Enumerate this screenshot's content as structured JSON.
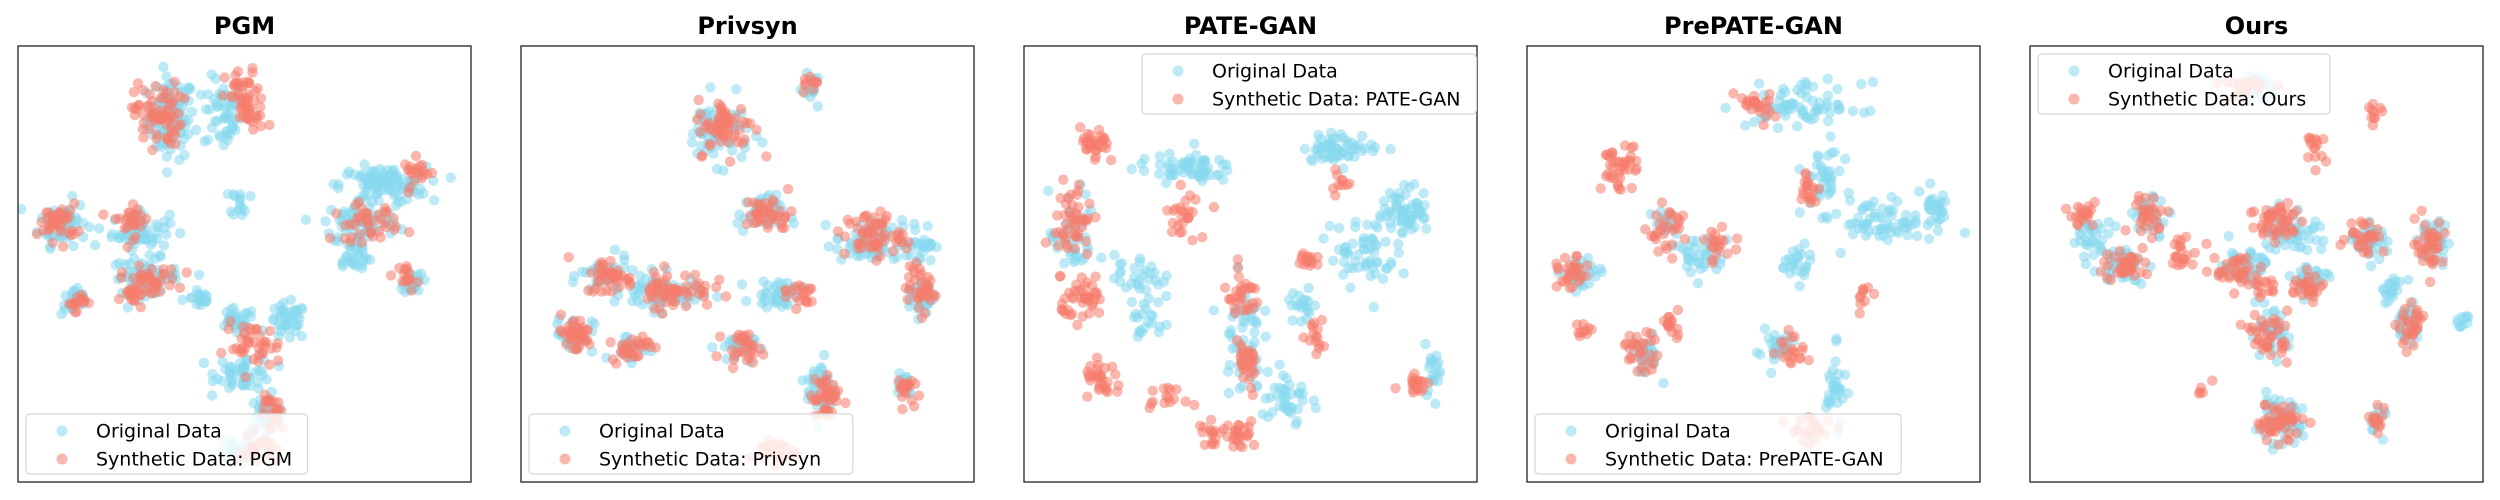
{
  "figure": {
    "colors": {
      "original": "#87d8ef",
      "synthetic": "#f67c6c",
      "frame": "#222222",
      "legend_border": "#d6d6d6"
    }
  },
  "chart_data": [
    {
      "type": "scatter",
      "title": "PGM",
      "legend": {
        "placement": "lower-left",
        "entries": [
          "Original Data",
          "Synthetic Data: PGM"
        ]
      },
      "clusters": {
        "original": [
          [
            0.33,
            0.85,
            0.05,
            0.09,
            90
          ],
          [
            0.45,
            0.86,
            0.04,
            0.08,
            50
          ],
          [
            0.08,
            0.6,
            0.05,
            0.05,
            60
          ],
          [
            0.26,
            0.58,
            0.06,
            0.04,
            60
          ],
          [
            0.27,
            0.47,
            0.07,
            0.04,
            60
          ],
          [
            0.11,
            0.41,
            0.03,
            0.03,
            30
          ],
          [
            0.4,
            0.42,
            0.02,
            0.03,
            20
          ],
          [
            0.48,
            0.36,
            0.04,
            0.03,
            30
          ],
          [
            0.6,
            0.36,
            0.04,
            0.04,
            40
          ],
          [
            0.5,
            0.24,
            0.06,
            0.04,
            50
          ],
          [
            0.55,
            0.14,
            0.04,
            0.04,
            30
          ],
          [
            0.82,
            0.69,
            0.09,
            0.04,
            100
          ],
          [
            0.77,
            0.6,
            0.08,
            0.05,
            70
          ],
          [
            0.89,
            0.46,
            0.02,
            0.03,
            20
          ],
          [
            0.49,
            0.65,
            0.02,
            0.03,
            15
          ],
          [
            0.75,
            0.52,
            0.04,
            0.04,
            30
          ],
          [
            0.47,
            0.05,
            0.04,
            0.03,
            20
          ]
        ],
        "synthetic": [
          [
            0.3,
            0.86,
            0.05,
            0.07,
            70
          ],
          [
            0.5,
            0.9,
            0.04,
            0.06,
            40
          ],
          [
            0.52,
            0.85,
            0.03,
            0.03,
            15
          ],
          [
            0.07,
            0.6,
            0.04,
            0.04,
            40
          ],
          [
            0.28,
            0.46,
            0.06,
            0.03,
            40
          ],
          [
            0.24,
            0.61,
            0.04,
            0.04,
            25
          ],
          [
            0.52,
            0.3,
            0.06,
            0.05,
            40
          ],
          [
            0.57,
            0.14,
            0.03,
            0.04,
            25
          ],
          [
            0.88,
            0.47,
            0.02,
            0.03,
            15
          ],
          [
            0.78,
            0.6,
            0.07,
            0.04,
            40
          ],
          [
            0.9,
            0.72,
            0.03,
            0.03,
            20
          ],
          [
            0.25,
            0.42,
            0.03,
            0.03,
            15
          ],
          [
            0.11,
            0.41,
            0.02,
            0.02,
            15
          ],
          [
            0.53,
            0.05,
            0.04,
            0.03,
            25
          ]
        ]
      }
    },
    {
      "type": "scatter",
      "title": "Privsyn",
      "legend": {
        "placement": "lower-left",
        "entries": [
          "Original Data",
          "Synthetic Data: Privsyn"
        ]
      },
      "clusters": {
        "original": [
          [
            0.43,
            0.82,
            0.07,
            0.07,
            60
          ],
          [
            0.65,
            0.92,
            0.02,
            0.03,
            15
          ],
          [
            0.17,
            0.47,
            0.05,
            0.04,
            40
          ],
          [
            0.3,
            0.43,
            0.08,
            0.04,
            70
          ],
          [
            0.57,
            0.43,
            0.05,
            0.03,
            40
          ],
          [
            0.1,
            0.33,
            0.04,
            0.04,
            30
          ],
          [
            0.23,
            0.3,
            0.04,
            0.03,
            25
          ],
          [
            0.47,
            0.3,
            0.04,
            0.03,
            30
          ],
          [
            0.53,
            0.62,
            0.05,
            0.04,
            40
          ],
          [
            0.78,
            0.55,
            0.07,
            0.05,
            60
          ],
          [
            0.9,
            0.55,
            0.03,
            0.04,
            30
          ],
          [
            0.9,
            0.42,
            0.03,
            0.04,
            30
          ],
          [
            0.67,
            0.2,
            0.03,
            0.07,
            40
          ],
          [
            0.86,
            0.22,
            0.02,
            0.03,
            20
          ]
        ],
        "synthetic": [
          [
            0.45,
            0.83,
            0.06,
            0.06,
            60
          ],
          [
            0.65,
            0.93,
            0.02,
            0.02,
            10
          ],
          [
            0.18,
            0.47,
            0.05,
            0.04,
            40
          ],
          [
            0.33,
            0.44,
            0.08,
            0.04,
            60
          ],
          [
            0.1,
            0.33,
            0.04,
            0.04,
            40
          ],
          [
            0.23,
            0.3,
            0.04,
            0.03,
            30
          ],
          [
            0.49,
            0.3,
            0.04,
            0.03,
            30
          ],
          [
            0.55,
            0.62,
            0.05,
            0.04,
            40
          ],
          [
            0.79,
            0.57,
            0.06,
            0.05,
            60
          ],
          [
            0.9,
            0.44,
            0.03,
            0.05,
            40
          ],
          [
            0.68,
            0.18,
            0.03,
            0.06,
            40
          ],
          [
            0.86,
            0.2,
            0.02,
            0.03,
            20
          ],
          [
            0.56,
            0.05,
            0.05,
            0.03,
            25
          ],
          [
            0.62,
            0.43,
            0.04,
            0.03,
            20
          ]
        ]
      }
    },
    {
      "type": "scatter",
      "title": "PATE-GAN",
      "legend": {
        "placement": "upper-center",
        "entries": [
          "Original Data",
          "Synthetic Data: PATE-GAN"
        ]
      },
      "clusters": {
        "original": [
          [
            0.35,
            0.73,
            0.1,
            0.03,
            60
          ],
          [
            0.09,
            0.56,
            0.05,
            0.1,
            40
          ],
          [
            0.24,
            0.47,
            0.05,
            0.05,
            30
          ],
          [
            0.86,
            0.63,
            0.05,
            0.05,
            60
          ],
          [
            0.71,
            0.78,
            0.08,
            0.03,
            60
          ],
          [
            0.76,
            0.53,
            0.07,
            0.08,
            60
          ],
          [
            0.48,
            0.33,
            0.04,
            0.12,
            50
          ],
          [
            0.58,
            0.18,
            0.05,
            0.08,
            40
          ],
          [
            0.27,
            0.36,
            0.04,
            0.05,
            20
          ],
          [
            0.92,
            0.25,
            0.02,
            0.05,
            20
          ],
          [
            0.62,
            0.4,
            0.03,
            0.04,
            20
          ]
        ],
        "synthetic": [
          [
            0.14,
            0.78,
            0.03,
            0.04,
            30
          ],
          [
            0.09,
            0.6,
            0.04,
            0.1,
            50
          ],
          [
            0.12,
            0.41,
            0.05,
            0.04,
            40
          ],
          [
            0.16,
            0.22,
            0.04,
            0.04,
            30
          ],
          [
            0.48,
            0.42,
            0.04,
            0.05,
            30
          ],
          [
            0.49,
            0.25,
            0.03,
            0.06,
            30
          ],
          [
            0.63,
            0.51,
            0.02,
            0.03,
            15
          ],
          [
            0.45,
            0.09,
            0.07,
            0.03,
            40
          ],
          [
            0.65,
            0.33,
            0.02,
            0.04,
            15
          ],
          [
            0.88,
            0.22,
            0.03,
            0.03,
            20
          ],
          [
            0.35,
            0.62,
            0.04,
            0.05,
            25
          ],
          [
            0.7,
            0.7,
            0.02,
            0.03,
            10
          ],
          [
            0.3,
            0.18,
            0.04,
            0.02,
            15
          ]
        ]
      }
    },
    {
      "type": "scatter",
      "title": "PrePATE-GAN",
      "legend": {
        "placement": "lower-left",
        "entries": [
          "Original Data",
          "Synthetic Data: PrePATE-GAN"
        ]
      },
      "clusters": {
        "original": [
          [
            0.62,
            0.88,
            0.12,
            0.05,
            70
          ],
          [
            0.66,
            0.7,
            0.04,
            0.07,
            40
          ],
          [
            0.38,
            0.52,
            0.06,
            0.05,
            40
          ],
          [
            0.1,
            0.47,
            0.04,
            0.04,
            30
          ],
          [
            0.25,
            0.28,
            0.03,
            0.04,
            30
          ],
          [
            0.8,
            0.6,
            0.08,
            0.05,
            60
          ],
          [
            0.92,
            0.63,
            0.03,
            0.05,
            30
          ],
          [
            0.55,
            0.3,
            0.04,
            0.04,
            30
          ],
          [
            0.69,
            0.2,
            0.02,
            0.08,
            30
          ],
          [
            0.6,
            0.5,
            0.03,
            0.04,
            25
          ],
          [
            0.3,
            0.6,
            0.03,
            0.03,
            15
          ]
        ],
        "synthetic": [
          [
            0.5,
            0.88,
            0.04,
            0.04,
            25
          ],
          [
            0.19,
            0.73,
            0.04,
            0.05,
            40
          ],
          [
            0.3,
            0.58,
            0.04,
            0.05,
            30
          ],
          [
            0.42,
            0.55,
            0.03,
            0.04,
            20
          ],
          [
            0.08,
            0.47,
            0.03,
            0.04,
            30
          ],
          [
            0.24,
            0.29,
            0.04,
            0.04,
            30
          ],
          [
            0.31,
            0.36,
            0.03,
            0.03,
            15
          ],
          [
            0.63,
            0.68,
            0.02,
            0.04,
            20
          ],
          [
            0.59,
            0.3,
            0.03,
            0.04,
            20
          ],
          [
            0.63,
            0.1,
            0.05,
            0.03,
            25
          ],
          [
            0.76,
            0.42,
            0.02,
            0.03,
            10
          ],
          [
            0.11,
            0.34,
            0.02,
            0.02,
            10
          ]
        ]
      }
    },
    {
      "type": "scatter",
      "title": "Ours",
      "legend": {
        "placement": "upper-left",
        "entries": [
          "Original Data",
          "Synthetic Data: Ours"
        ]
      },
      "clusters": {
        "original": [
          [
            0.5,
            0.93,
            0.05,
            0.03,
            20
          ],
          [
            0.12,
            0.56,
            0.04,
            0.04,
            30
          ],
          [
            0.26,
            0.62,
            0.04,
            0.04,
            30
          ],
          [
            0.58,
            0.58,
            0.06,
            0.05,
            50
          ],
          [
            0.76,
            0.56,
            0.04,
            0.04,
            40
          ],
          [
            0.91,
            0.55,
            0.03,
            0.05,
            40
          ],
          [
            0.19,
            0.5,
            0.05,
            0.04,
            40
          ],
          [
            0.47,
            0.5,
            0.05,
            0.04,
            40
          ],
          [
            0.62,
            0.46,
            0.04,
            0.04,
            30
          ],
          [
            0.81,
            0.44,
            0.03,
            0.03,
            20
          ],
          [
            0.85,
            0.36,
            0.03,
            0.04,
            30
          ],
          [
            0.53,
            0.33,
            0.04,
            0.05,
            40
          ],
          [
            0.55,
            0.12,
            0.05,
            0.05,
            50
          ],
          [
            0.78,
            0.12,
            0.02,
            0.03,
            15
          ],
          [
            0.97,
            0.36,
            0.02,
            0.03,
            10
          ]
        ],
        "synthetic": [
          [
            0.48,
            0.93,
            0.06,
            0.03,
            20
          ],
          [
            0.77,
            0.86,
            0.02,
            0.02,
            10
          ],
          [
            0.64,
            0.78,
            0.02,
            0.03,
            15
          ],
          [
            0.1,
            0.62,
            0.03,
            0.03,
            20
          ],
          [
            0.25,
            0.62,
            0.04,
            0.04,
            30
          ],
          [
            0.55,
            0.6,
            0.06,
            0.05,
            50
          ],
          [
            0.75,
            0.57,
            0.04,
            0.04,
            30
          ],
          [
            0.9,
            0.55,
            0.03,
            0.05,
            40
          ],
          [
            0.2,
            0.5,
            0.05,
            0.04,
            40
          ],
          [
            0.33,
            0.52,
            0.04,
            0.03,
            20
          ],
          [
            0.46,
            0.48,
            0.05,
            0.04,
            40
          ],
          [
            0.62,
            0.44,
            0.04,
            0.04,
            30
          ],
          [
            0.86,
            0.35,
            0.03,
            0.04,
            30
          ],
          [
            0.53,
            0.33,
            0.04,
            0.05,
            40
          ],
          [
            0.55,
            0.12,
            0.05,
            0.04,
            50
          ],
          [
            0.78,
            0.12,
            0.02,
            0.03,
            15
          ],
          [
            0.52,
            0.44,
            0.02,
            0.02,
            10
          ],
          [
            0.38,
            0.2,
            0.02,
            0.02,
            5
          ]
        ]
      }
    }
  ]
}
